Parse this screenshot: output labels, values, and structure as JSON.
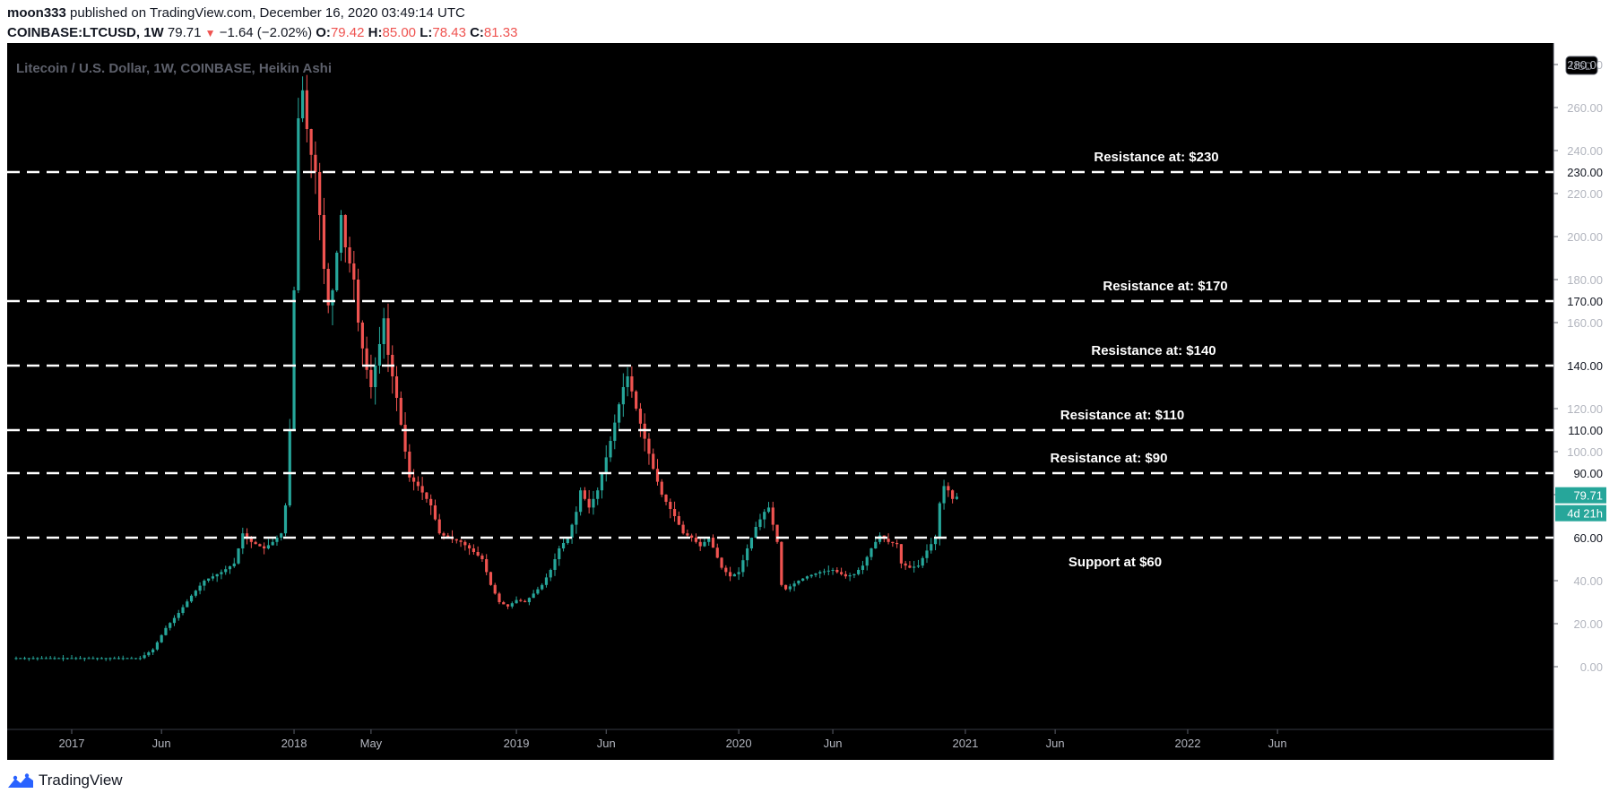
{
  "header": {
    "author": "moon333",
    "published_text": " published on TradingView.com, December 16, 2020 03:49:14 UTC",
    "symbol": "COINBASE:LTCUSD, 1W",
    "last_price": "79.71",
    "change_arrow": "▼",
    "change": "−1.64 (−2.02%)",
    "o_label": "O:",
    "o_value": "79.42",
    "h_label": "H:",
    "h_value": "85.00",
    "l_label": "L:",
    "l_value": "78.43",
    "c_label": "C:",
    "c_value": "81.33"
  },
  "footer": {
    "brand": "TradingView"
  },
  "colors": {
    "background": "#000000",
    "up": "#26a69a",
    "down": "#ef5350",
    "level_line": "#ffffff",
    "axis_text": "#b2b5be",
    "watermark": "#5d606b"
  },
  "chart_data": {
    "type": "candlestick",
    "title": "Litecoin / U.S. Dollar, 1W, COINBASE, Heikin Ashi",
    "currency_badge": "USD",
    "ylim": [
      -15,
      285
    ],
    "y_ticks": [
      "0.00",
      "20.00",
      "40.00",
      "60.00",
      "80.00",
      "100.00",
      "120.00",
      "140.00",
      "160.00",
      "180.00",
      "200.00",
      "220.00",
      "240.00",
      "260.00",
      "280.00"
    ],
    "y_tick_values": [
      0,
      20,
      40,
      60,
      80,
      100,
      120,
      140,
      160,
      180,
      200,
      220,
      240,
      260,
      280
    ],
    "x_ticks": [
      {
        "label": "2017",
        "week": 0
      },
      {
        "label": "Jun",
        "week": 21
      },
      {
        "label": "2018",
        "week": 52
      },
      {
        "label": "May",
        "week": 70
      },
      {
        "label": "2019",
        "week": 104
      },
      {
        "label": "Jun",
        "week": 125
      },
      {
        "label": "2020",
        "week": 156
      },
      {
        "label": "Jun",
        "week": 178
      },
      {
        "label": "2021",
        "week": 209
      },
      {
        "label": "Jun",
        "week": 230
      },
      {
        "label": "2022",
        "week": 261
      },
      {
        "label": "Jun",
        "week": 282
      }
    ],
    "levels": [
      {
        "value": 230,
        "price_label": "230.00",
        "annotation": "Resistance at: $230"
      },
      {
        "value": 170,
        "price_label": "170.00",
        "annotation": "Resistance at: $170"
      },
      {
        "value": 140,
        "price_label": "140.00",
        "annotation": "Resistance at: $140"
      },
      {
        "value": 110,
        "price_label": "110.00",
        "annotation": "Resistance at: $110"
      },
      {
        "value": 90,
        "price_label": "90.00",
        "annotation": "Resistance at: $90"
      },
      {
        "value": 60,
        "price_label": "60.00",
        "annotation": "Support at $60"
      }
    ],
    "current_price": {
      "value": 79.71,
      "label": "79.71",
      "countdown": "4d 21h"
    },
    "anchors": [
      [
        -13,
        4
      ],
      [
        4,
        4
      ],
      [
        9,
        4
      ],
      [
        12,
        4
      ],
      [
        16,
        4
      ],
      [
        19,
        8
      ],
      [
        22,
        18
      ],
      [
        25,
        25
      ],
      [
        28,
        33
      ],
      [
        31,
        40
      ],
      [
        35,
        44
      ],
      [
        38,
        48
      ],
      [
        40,
        62
      ],
      [
        42,
        58
      ],
      [
        45,
        55
      ],
      [
        47,
        58
      ],
      [
        49,
        62
      ],
      [
        50,
        75
      ],
      [
        51,
        110
      ],
      [
        52,
        175
      ],
      [
        53,
        255
      ],
      [
        54,
        268
      ],
      [
        55,
        250
      ],
      [
        56,
        238
      ],
      [
        57,
        230
      ],
      [
        58,
        210
      ],
      [
        59,
        185
      ],
      [
        60,
        168
      ],
      [
        61,
        175
      ],
      [
        63,
        210
      ],
      [
        64,
        195
      ],
      [
        66,
        180
      ],
      [
        67,
        160
      ],
      [
        68,
        148
      ],
      [
        69,
        138
      ],
      [
        70,
        130
      ],
      [
        72,
        150
      ],
      [
        73,
        162
      ],
      [
        74,
        145
      ],
      [
        76,
        125
      ],
      [
        78,
        100
      ],
      [
        79,
        88
      ],
      [
        81,
        84
      ],
      [
        84,
        75
      ],
      [
        86,
        62
      ],
      [
        88,
        60
      ],
      [
        91,
        58
      ],
      [
        93,
        55
      ],
      [
        96,
        50
      ],
      [
        98,
        38
      ],
      [
        100,
        30
      ],
      [
        102,
        28
      ],
      [
        104,
        31
      ],
      [
        106,
        30
      ],
      [
        108,
        34
      ],
      [
        110,
        38
      ],
      [
        112,
        45
      ],
      [
        114,
        55
      ],
      [
        116,
        60
      ],
      [
        118,
        72
      ],
      [
        119,
        82
      ],
      [
        121,
        74
      ],
      [
        123,
        82
      ],
      [
        126,
        105
      ],
      [
        128,
        122
      ],
      [
        129,
        130
      ],
      [
        130,
        135
      ],
      [
        131,
        128
      ],
      [
        132,
        120
      ],
      [
        134,
        106
      ],
      [
        136,
        92
      ],
      [
        138,
        80
      ],
      [
        141,
        70
      ],
      [
        143,
        62
      ],
      [
        145,
        60
      ],
      [
        147,
        56
      ],
      [
        149,
        60
      ],
      [
        152,
        46
      ],
      [
        154,
        42
      ],
      [
        156,
        44
      ],
      [
        158,
        55
      ],
      [
        160,
        65
      ],
      [
        162,
        72
      ],
      [
        163,
        74
      ],
      [
        164,
        66
      ],
      [
        165,
        58
      ],
      [
        166,
        38
      ],
      [
        167,
        36
      ],
      [
        170,
        40
      ],
      [
        172,
        42
      ],
      [
        175,
        44
      ],
      [
        178,
        45
      ],
      [
        181,
        42
      ],
      [
        183,
        43
      ],
      [
        185,
        47
      ],
      [
        187,
        55
      ],
      [
        189,
        61
      ],
      [
        191,
        58
      ],
      [
        193,
        57
      ],
      [
        194,
        48
      ],
      [
        196,
        46
      ],
      [
        198,
        47
      ],
      [
        200,
        54
      ],
      [
        202,
        60
      ],
      [
        203,
        76
      ],
      [
        204,
        84
      ],
      [
        205,
        82
      ],
      [
        206,
        78
      ],
      [
        207,
        79
      ]
    ]
  }
}
